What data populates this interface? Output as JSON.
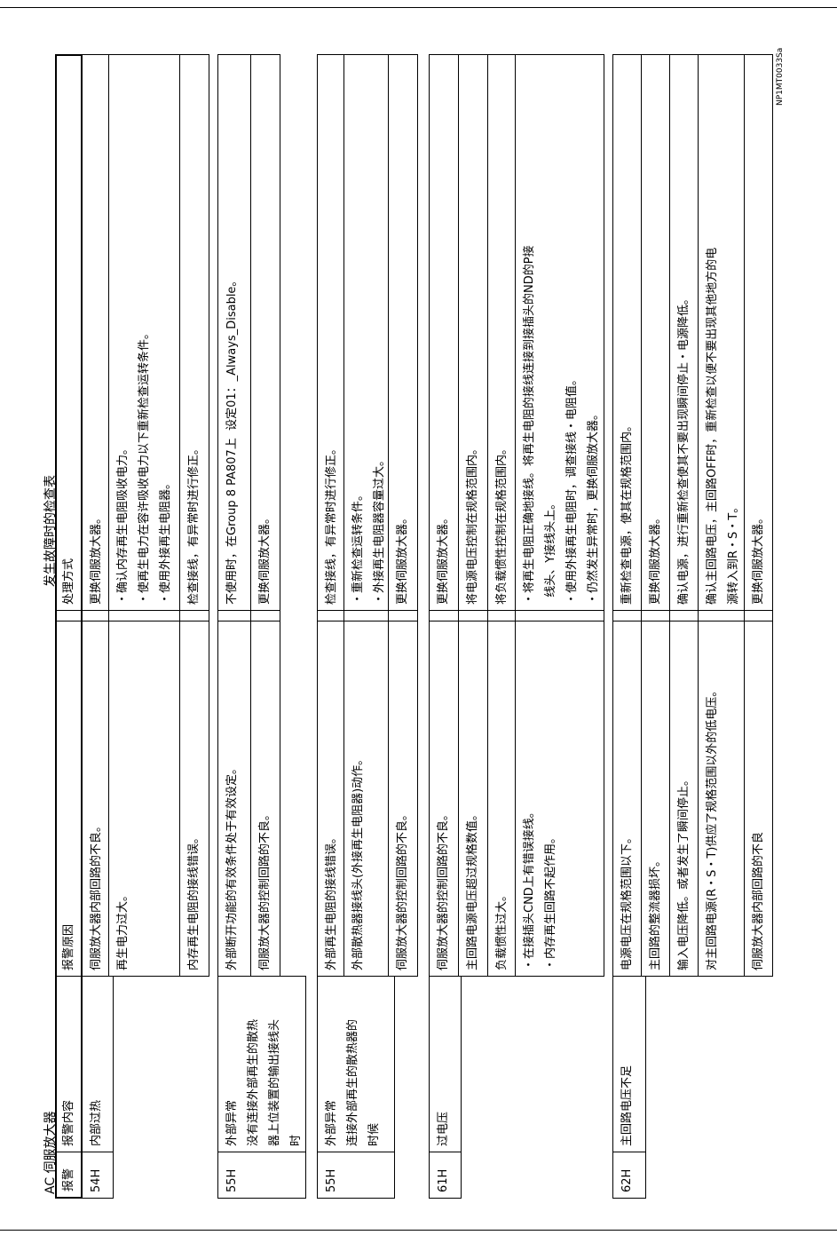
{
  "page_title": "发生故障时的检查表",
  "section_title": "AC 伺服放大器",
  "figure_code": "NP1MT0033Sa",
  "header": {
    "code": "报警",
    "content": "报警内容",
    "cause": "报警原因",
    "remedy": "处理方式"
  },
  "blocks": [
    {
      "code": "54H",
      "content": [
        "内部过热"
      ],
      "rows": [
        {
          "cause": [
            "伺服放大器内部回路的不良。"
          ],
          "remedy": [
            "更换伺服放大器。"
          ]
        },
        {
          "cause": [
            "再生电力过大。"
          ],
          "remedy": [
            "・确认内存再生电阻吸收电力。",
            "・使再生电力在容许吸收电力以下重新检查运转条件。",
            "・使用外接再生电阻器。"
          ]
        },
        {
          "cause": [
            "内存再生电阻的接线错误。"
          ],
          "remedy": [
            "检查接线，有异常时进行修正。"
          ]
        }
      ]
    },
    {
      "code": "55H",
      "content": [
        "外部异常",
        "没有连接外部再生的散热",
        "器上位装置的输出接线头",
        "时"
      ],
      "rows": [
        {
          "cause": [
            "外部断开功能的有效条件处于有效设定。"
          ],
          "remedy": [
            "不使用时，在Group 8 PA807上  设定01：_Always_Disable。"
          ]
        },
        {
          "cause": [
            "伺服放大器的控制回路的不良。"
          ],
          "remedy": [
            "更换伺服放大器。"
          ]
        }
      ]
    },
    {
      "code": "55H",
      "content": [
        "外部异常",
        "连接外部再生的散热器的",
        "时候"
      ],
      "rows": [
        {
          "cause": [
            "外部再生电阻的接线错误。"
          ],
          "remedy": [
            "检查接线，有异常时进行修正。"
          ]
        },
        {
          "cause": [
            "外部散热器接线头(外接再生电阻器)动作。"
          ],
          "remedy": [
            "・重新检查运转条件。",
            "・外接再生电阻器容量过大。"
          ]
        },
        {
          "cause": [
            "伺服放大器的控制回路的不良。"
          ],
          "remedy": [
            "更换伺服放大器。"
          ]
        }
      ]
    },
    {
      "code": "61H",
      "content": [
        "过电压"
      ],
      "rows": [
        {
          "cause": [
            "伺服放大器的控制回路的不良。"
          ],
          "remedy": [
            "更换伺服放大器。"
          ]
        },
        {
          "cause": [
            "主回路电源电压超过规格数值。"
          ],
          "remedy": [
            "将电源电压控制在规格范围内。"
          ]
        },
        {
          "cause": [
            "负载惯性过大。"
          ],
          "remedy": [
            "将负载惯性控制在规格范围内。"
          ]
        },
        {
          "cause": [
            "・在接插头CND上有错误接线。",
            "・内存再生回路不起作用。"
          ],
          "remedy": [
            "・将再生电阻正确地接线。将再生电阻的接线连接到接插头的ND的P接",
            "  线头、Y接线头上。",
            "・使用外接再生电阻时，调查接线・电阻值。",
            "・仍然发生异常时，更换伺服放大器。"
          ]
        }
      ]
    },
    {
      "code": "62H",
      "content": [
        "主回路电压不足"
      ],
      "rows": [
        {
          "cause": [
            "电源电压在规格范围以下。"
          ],
          "remedy": [
            "重新检查电源，使其在规格范围内。"
          ]
        },
        {
          "cause": [
            "主回路的整流器损坏。"
          ],
          "remedy": [
            "更换伺服放大器。"
          ]
        },
        {
          "cause": [
            "输入电压降低。或者发生了瞬间停止。"
          ],
          "remedy": [
            "确认电源，进行重新检查使其不要出现瞬间停止・电源降低。"
          ]
        },
        {
          "cause": [
            "对主回路电源(R・S・T)供应了规格范围以外的低电压。"
          ],
          "remedy": [
            "确认主回路电压，主回路OFF时，重新检查以便不要出现其他地方的电",
            "源转入到R・S・T。"
          ]
        },
        {
          "cause": [
            "伺服放大器内部回路的不良"
          ],
          "remedy": [
            "更换伺服放大器。"
          ]
        }
      ]
    }
  ]
}
